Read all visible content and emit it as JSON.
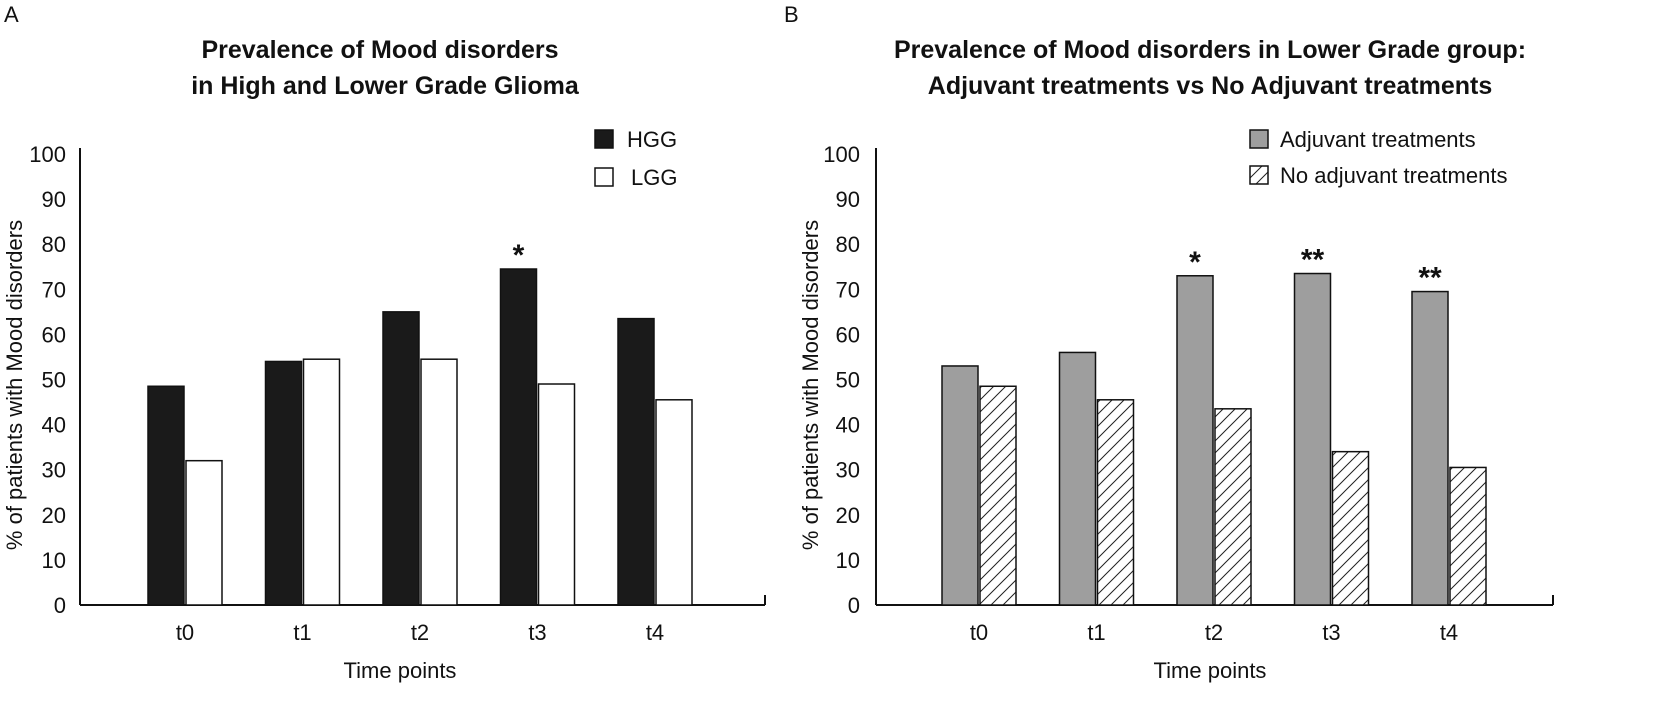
{
  "chart_data": [
    {
      "panel": "A",
      "type": "bar",
      "title": [
        "Prevalence of Mood disorders",
        "in High and Lower Grade Glioma"
      ],
      "xlabel": "Time points",
      "ylabel": "% of patients with Mood disorders",
      "ylim": [
        0,
        100
      ],
      "yticks": [
        "0",
        "10",
        "20",
        "30",
        "40",
        "50",
        "60",
        "70",
        "80",
        "90",
        "100"
      ],
      "categories": [
        "t0",
        "t1",
        "t2",
        "t3",
        "t4"
      ],
      "series": [
        {
          "name": "HGG",
          "fill": "solid-black",
          "values": [
            48.5,
            54,
            65,
            74.5,
            63.5
          ]
        },
        {
          "name": "LGG",
          "fill": "white",
          "values": [
            32,
            54.5,
            54.5,
            49,
            45.5
          ]
        }
      ],
      "annotations": [
        {
          "category": "t3",
          "text": "*"
        }
      ],
      "legend_position": "top-right"
    },
    {
      "panel": "B",
      "type": "bar",
      "title": [
        "Prevalence of Mood disorders in Lower Grade group:",
        "Adjuvant treatments vs No Adjuvant treatments"
      ],
      "xlabel": "Time points",
      "ylabel": "% of patients with Mood disorders",
      "ylim": [
        0,
        100
      ],
      "yticks": [
        "0",
        "10",
        "20",
        "30",
        "40",
        "50",
        "60",
        "70",
        "80",
        "90",
        "100"
      ],
      "categories": [
        "t0",
        "t1",
        "t2",
        "t3",
        "t4"
      ],
      "series": [
        {
          "name": "Adjuvant treatments",
          "fill": "gray",
          "values": [
            53,
            56,
            73,
            73.5,
            69.5
          ]
        },
        {
          "name": "No adjuvant treatments",
          "fill": "hatched",
          "values": [
            48.5,
            45.5,
            43.5,
            34,
            30.5
          ]
        }
      ],
      "annotations": [
        {
          "category": "t2",
          "text": "*"
        },
        {
          "category": "t3",
          "text": "**"
        },
        {
          "category": "t4",
          "text": "**"
        }
      ],
      "legend_position": "top-right"
    }
  ],
  "colors": {
    "hgg": "#1a1a1a",
    "lgg": "#ffffff",
    "adjuvant": "#9e9e9e",
    "no_adjuvant": "#ffffff",
    "axis": "#111111"
  }
}
